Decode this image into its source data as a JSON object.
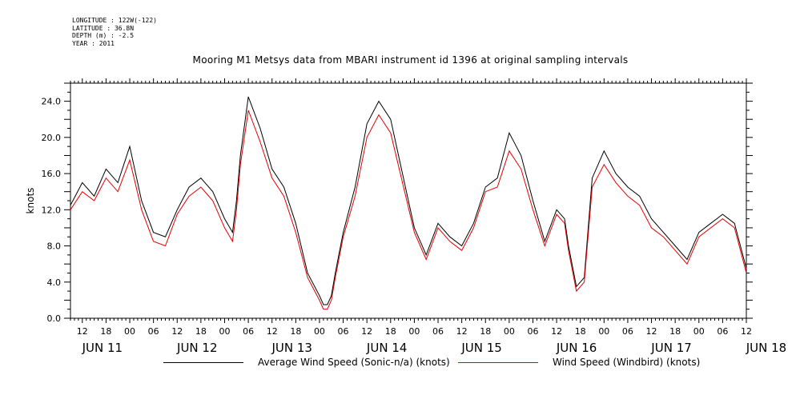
{
  "header": {
    "longitude": "LONGITUDE : 122W(-122)",
    "latitude": "LATITUDE : 36.8N",
    "depth": "DEPTH (m) : -2.5",
    "year": "YEAR : 2011"
  },
  "chart_data": {
    "type": "line",
    "title": "Mooring M1 Metsys data from MBARI instrument id 1396 at original sampling intervals",
    "ylabel": "knots",
    "xlabel": "",
    "ylim": [
      0,
      26
    ],
    "xlim_hours": [
      9,
      180
    ],
    "y_ticks": [
      "0.0",
      "4.0",
      "8.0",
      "12.0",
      "16.0",
      "20.0",
      "24.0"
    ],
    "x_hour_ticks": [
      "12",
      "18",
      "00",
      "06",
      "12",
      "18",
      "00",
      "06",
      "12",
      "18",
      "00",
      "06",
      "12",
      "18",
      "00",
      "06",
      "12",
      "18",
      "00",
      "06",
      "12",
      "18",
      "00",
      "06",
      "12",
      "18",
      "00",
      "06",
      "12"
    ],
    "x_day_labels": [
      "JUN 11",
      "JUN 12",
      "JUN 13",
      "JUN 14",
      "JUN 15",
      "JUN 16",
      "JUN 17",
      "JUN 18"
    ],
    "x_hours_since_jun11_00": [
      9,
      12,
      15,
      18,
      21,
      24,
      27,
      30,
      33,
      36,
      39,
      42,
      45,
      48,
      50,
      51,
      52,
      54,
      57,
      60,
      63,
      66,
      69,
      72,
      73,
      74,
      75,
      76,
      78,
      81,
      84,
      87,
      90,
      93,
      96,
      99,
      102,
      105,
      108,
      111,
      114,
      117,
      120,
      123,
      126,
      129,
      132,
      134,
      135,
      137,
      139,
      141,
      144,
      147,
      150,
      153,
      156,
      159,
      162,
      165,
      168,
      171,
      174,
      177,
      180
    ],
    "series": [
      {
        "name": "Average Wind Speed (Sonic-n/a) (knots)",
        "color": "#000000",
        "values": [
          12.5,
          15.0,
          13.5,
          16.5,
          15.0,
          19.0,
          13.0,
          9.5,
          9.0,
          12.0,
          14.5,
          15.5,
          14.0,
          11.0,
          9.5,
          13.0,
          18.0,
          24.5,
          21.0,
          16.5,
          14.5,
          10.5,
          5.0,
          2.5,
          1.5,
          1.5,
          2.5,
          5.0,
          9.5,
          14.5,
          21.5,
          24.0,
          22.0,
          16.0,
          10.0,
          7.0,
          10.5,
          9.0,
          8.0,
          10.5,
          14.5,
          15.5,
          20.5,
          18.0,
          13.0,
          8.5,
          12.0,
          11.0,
          8.0,
          3.5,
          4.5,
          15.5,
          18.5,
          16.0,
          14.5,
          13.5,
          11.0,
          9.5,
          8.0,
          6.5,
          9.5,
          10.5,
          11.5,
          10.5,
          5.5
        ]
      },
      {
        "name": "Wind Speed (Windbird) (knots)",
        "color": "#e00000",
        "values": [
          12.0,
          14.0,
          13.0,
          15.5,
          14.0,
          17.5,
          12.0,
          8.5,
          8.0,
          11.5,
          13.5,
          14.5,
          13.0,
          10.0,
          8.5,
          12.0,
          17.0,
          23.0,
          19.5,
          15.5,
          13.5,
          9.5,
          4.5,
          2.0,
          1.0,
          1.0,
          2.0,
          4.5,
          9.0,
          13.5,
          20.0,
          22.5,
          20.5,
          15.0,
          9.5,
          6.5,
          10.0,
          8.5,
          7.5,
          10.0,
          14.0,
          14.5,
          18.5,
          16.5,
          12.0,
          8.0,
          11.5,
          10.5,
          7.5,
          3.0,
          4.0,
          14.5,
          17.0,
          15.0,
          13.5,
          12.5,
          10.0,
          9.0,
          7.5,
          6.0,
          9.0,
          10.0,
          11.0,
          10.0,
          5.0
        ]
      }
    ]
  },
  "legend": {
    "avg_label": "Average Wind Speed (Sonic-n/a) (knots)",
    "windbird_label": "Wind Speed (Windbird) (knots)"
  }
}
